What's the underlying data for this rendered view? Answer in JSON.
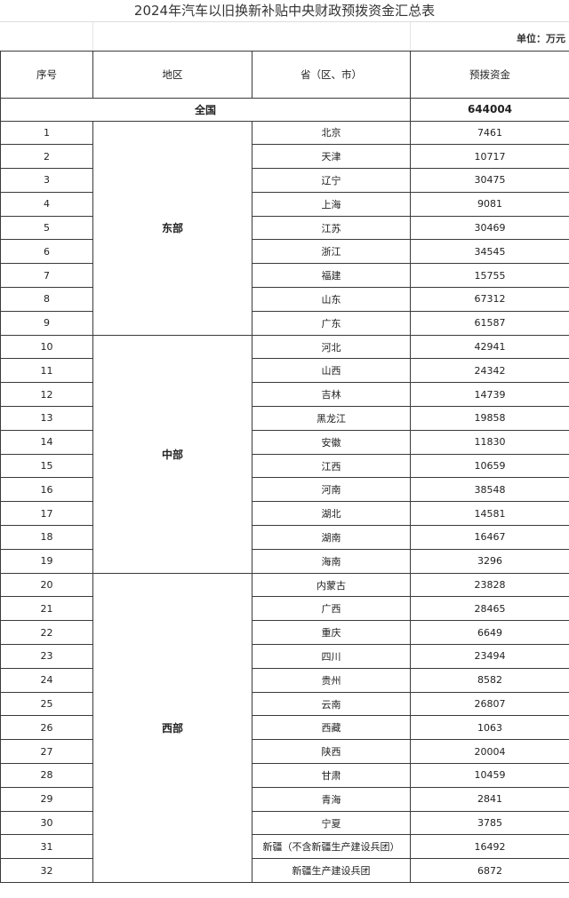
{
  "title": "2024年汽车以旧换新补贴中央财政预拨资金汇总表",
  "unit": "单位：万元",
  "headers": {
    "index": "序号",
    "region": "地区",
    "province": "省（区、市）",
    "funds": "预拨资金"
  },
  "total": {
    "label": "全国",
    "value": "644004"
  },
  "regions": [
    {
      "name": "东部",
      "rows": [
        {
          "no": "1",
          "province": "北京",
          "funds": "7461"
        },
        {
          "no": "2",
          "province": "天津",
          "funds": "10717"
        },
        {
          "no": "3",
          "province": "辽宁",
          "funds": "30475"
        },
        {
          "no": "4",
          "province": "上海",
          "funds": "9081"
        },
        {
          "no": "5",
          "province": "江苏",
          "funds": "30469"
        },
        {
          "no": "6",
          "province": "浙江",
          "funds": "34545"
        },
        {
          "no": "7",
          "province": "福建",
          "funds": "15755"
        },
        {
          "no": "8",
          "province": "山东",
          "funds": "67312"
        },
        {
          "no": "9",
          "province": "广东",
          "funds": "61587"
        }
      ]
    },
    {
      "name": "中部",
      "rows": [
        {
          "no": "10",
          "province": "河北",
          "funds": "42941"
        },
        {
          "no": "11",
          "province": "山西",
          "funds": "24342"
        },
        {
          "no": "12",
          "province": "吉林",
          "funds": "14739"
        },
        {
          "no": "13",
          "province": "黑龙江",
          "funds": "19858"
        },
        {
          "no": "14",
          "province": "安徽",
          "funds": "11830"
        },
        {
          "no": "15",
          "province": "江西",
          "funds": "10659"
        },
        {
          "no": "16",
          "province": "河南",
          "funds": "38548"
        },
        {
          "no": "17",
          "province": "湖北",
          "funds": "14581"
        },
        {
          "no": "18",
          "province": "湖南",
          "funds": "16467"
        },
        {
          "no": "19",
          "province": "海南",
          "funds": "3296"
        }
      ]
    },
    {
      "name": "西部",
      "rows": [
        {
          "no": "20",
          "province": "内蒙古",
          "funds": "23828"
        },
        {
          "no": "21",
          "province": "广西",
          "funds": "28465"
        },
        {
          "no": "22",
          "province": "重庆",
          "funds": "6649"
        },
        {
          "no": "23",
          "province": "四川",
          "funds": "23494"
        },
        {
          "no": "24",
          "province": "贵州",
          "funds": "8582"
        },
        {
          "no": "25",
          "province": "云南",
          "funds": "26807"
        },
        {
          "no": "26",
          "province": "西藏",
          "funds": "1063"
        },
        {
          "no": "27",
          "province": "陕西",
          "funds": "20004"
        },
        {
          "no": "28",
          "province": "甘肃",
          "funds": "10459"
        },
        {
          "no": "29",
          "province": "青海",
          "funds": "2841"
        },
        {
          "no": "30",
          "province": "宁夏",
          "funds": "3785"
        },
        {
          "no": "31",
          "province": "新疆（不含新疆生产建设兵团）",
          "funds": "16492"
        },
        {
          "no": "32",
          "province": "新疆生产建设兵团",
          "funds": "6872"
        }
      ]
    }
  ]
}
